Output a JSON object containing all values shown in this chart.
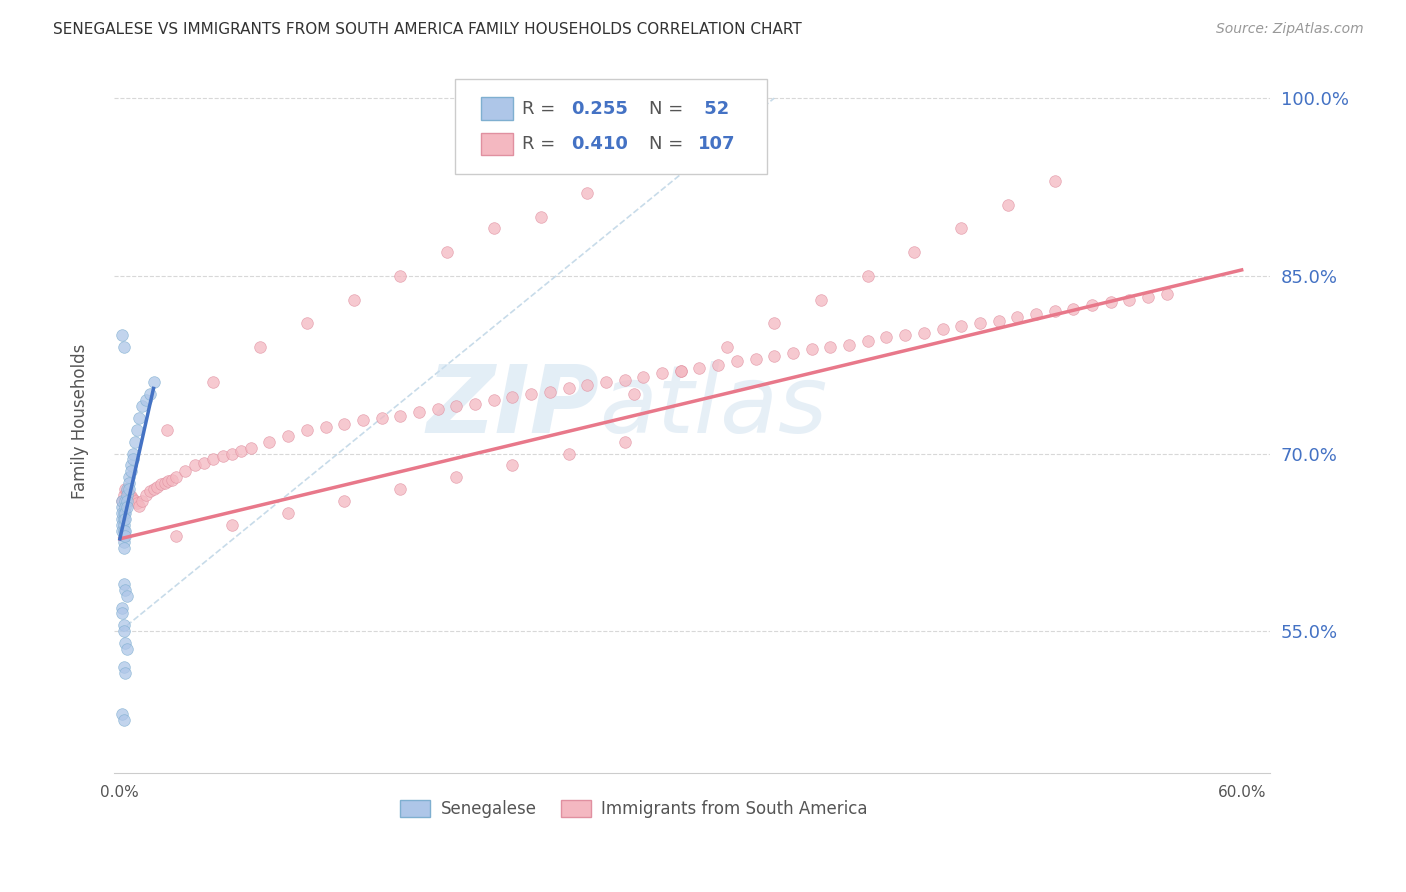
{
  "title": "SENEGALESE VS IMMIGRANTS FROM SOUTH AMERICA FAMILY HOUSEHOLDS CORRELATION CHART",
  "source": "Source: ZipAtlas.com",
  "ylabel": "Family Households",
  "x_tick_labels_show": [
    "0.0%",
    "60.0%"
  ],
  "x_tick_positions": [
    0.0,
    0.6
  ],
  "y_tick_labels_right": [
    "55.0%",
    "70.0%",
    "85.0%",
    "100.0%"
  ],
  "y_tick_positions": [
    0.55,
    0.7,
    0.85,
    1.0
  ],
  "y_min": 0.43,
  "y_max": 1.025,
  "x_min": -0.003,
  "x_max": 0.615,
  "legend_entries": [
    {
      "label": "Senegalese",
      "color": "#aec6e8",
      "R": "0.255",
      "N": "52"
    },
    {
      "label": "Immigrants from South America",
      "color": "#f4b8c1",
      "R": "0.410",
      "N": "107"
    }
  ],
  "blue_scatter_x": [
    0.001,
    0.001,
    0.001,
    0.001,
    0.001,
    0.001,
    0.002,
    0.002,
    0.002,
    0.002,
    0.002,
    0.002,
    0.002,
    0.003,
    0.003,
    0.003,
    0.003,
    0.003,
    0.003,
    0.004,
    0.004,
    0.004,
    0.004,
    0.005,
    0.005,
    0.005,
    0.006,
    0.006,
    0.007,
    0.007,
    0.008,
    0.009,
    0.01,
    0.012,
    0.014,
    0.016,
    0.018,
    0.002,
    0.003,
    0.004,
    0.001,
    0.001,
    0.002,
    0.002,
    0.003,
    0.004,
    0.002,
    0.003,
    0.001,
    0.002,
    0.001,
    0.002
  ],
  "blue_scatter_y": [
    0.645,
    0.655,
    0.66,
    0.65,
    0.64,
    0.635,
    0.65,
    0.645,
    0.64,
    0.635,
    0.63,
    0.625,
    0.62,
    0.66,
    0.655,
    0.65,
    0.645,
    0.635,
    0.63,
    0.67,
    0.665,
    0.66,
    0.655,
    0.68,
    0.675,
    0.67,
    0.69,
    0.685,
    0.7,
    0.695,
    0.71,
    0.72,
    0.73,
    0.74,
    0.745,
    0.75,
    0.76,
    0.59,
    0.585,
    0.58,
    0.57,
    0.565,
    0.555,
    0.55,
    0.54,
    0.535,
    0.52,
    0.515,
    0.48,
    0.475,
    0.8,
    0.79
  ],
  "pink_scatter_x": [
    0.001,
    0.002,
    0.003,
    0.004,
    0.005,
    0.006,
    0.007,
    0.008,
    0.009,
    0.01,
    0.012,
    0.014,
    0.016,
    0.018,
    0.02,
    0.022,
    0.024,
    0.026,
    0.028,
    0.03,
    0.035,
    0.04,
    0.045,
    0.05,
    0.055,
    0.06,
    0.065,
    0.07,
    0.08,
    0.09,
    0.1,
    0.11,
    0.12,
    0.13,
    0.14,
    0.15,
    0.16,
    0.17,
    0.18,
    0.19,
    0.2,
    0.21,
    0.22,
    0.23,
    0.24,
    0.25,
    0.26,
    0.27,
    0.28,
    0.29,
    0.3,
    0.31,
    0.32,
    0.33,
    0.34,
    0.35,
    0.36,
    0.37,
    0.38,
    0.39,
    0.4,
    0.41,
    0.42,
    0.43,
    0.44,
    0.45,
    0.46,
    0.47,
    0.48,
    0.49,
    0.5,
    0.51,
    0.52,
    0.53,
    0.54,
    0.55,
    0.56,
    0.025,
    0.05,
    0.075,
    0.1,
    0.125,
    0.15,
    0.175,
    0.2,
    0.225,
    0.25,
    0.275,
    0.3,
    0.325,
    0.35,
    0.375,
    0.4,
    0.425,
    0.45,
    0.475,
    0.5,
    0.03,
    0.06,
    0.09,
    0.12,
    0.15,
    0.18,
    0.21,
    0.24,
    0.27
  ],
  "pink_scatter_y": [
    0.66,
    0.665,
    0.67,
    0.668,
    0.666,
    0.664,
    0.662,
    0.66,
    0.658,
    0.656,
    0.66,
    0.665,
    0.668,
    0.67,
    0.672,
    0.674,
    0.675,
    0.677,
    0.678,
    0.68,
    0.685,
    0.69,
    0.692,
    0.695,
    0.698,
    0.7,
    0.702,
    0.705,
    0.71,
    0.715,
    0.72,
    0.722,
    0.725,
    0.728,
    0.73,
    0.732,
    0.735,
    0.738,
    0.74,
    0.742,
    0.745,
    0.748,
    0.75,
    0.752,
    0.755,
    0.758,
    0.76,
    0.762,
    0.765,
    0.768,
    0.77,
    0.772,
    0.775,
    0.778,
    0.78,
    0.782,
    0.785,
    0.788,
    0.79,
    0.792,
    0.795,
    0.798,
    0.8,
    0.802,
    0.805,
    0.808,
    0.81,
    0.812,
    0.815,
    0.818,
    0.82,
    0.822,
    0.825,
    0.828,
    0.83,
    0.832,
    0.835,
    0.72,
    0.76,
    0.79,
    0.81,
    0.83,
    0.85,
    0.87,
    0.89,
    0.9,
    0.92,
    0.75,
    0.77,
    0.79,
    0.81,
    0.83,
    0.85,
    0.87,
    0.89,
    0.91,
    0.93,
    0.63,
    0.64,
    0.65,
    0.66,
    0.67,
    0.68,
    0.69,
    0.7,
    0.71
  ],
  "blue_trend_x": [
    0.0,
    0.018
  ],
  "blue_trend_y": [
    0.628,
    0.755
  ],
  "pink_trend_x": [
    0.0,
    0.6
  ],
  "pink_trend_y": [
    0.628,
    0.855
  ],
  "diag_line_x": [
    0.0,
    0.35
  ],
  "diag_line_y": [
    0.55,
    1.0
  ],
  "watermark_zip": "ZIP",
  "watermark_atlas": "atlas",
  "marker_size": 70,
  "bg_color": "#ffffff",
  "grid_color": "#d8d8d8",
  "title_color": "#333333",
  "right_axis_color": "#4472c4",
  "blue_scatter_color": "#aec6e8",
  "blue_scatter_edge": "#7fafd0",
  "pink_scatter_color": "#f4b8c1",
  "pink_scatter_edge": "#e090a0",
  "blue_trend_color": "#4472c4",
  "pink_trend_color": "#e8788a",
  "diag_color": "#b0cce0"
}
